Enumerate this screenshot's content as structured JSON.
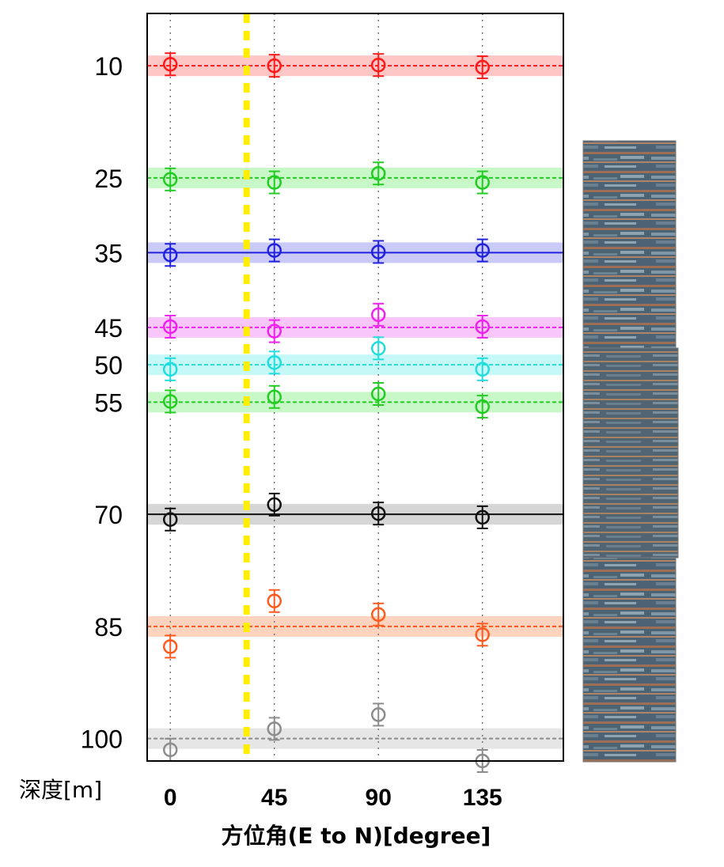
{
  "chart_data": {
    "type": "scatter",
    "title": "",
    "xlabel": "方位角(E to N)[degree]",
    "ylabel": "深度[m]",
    "x_ticks": [
      "0",
      "45",
      "90",
      "135"
    ],
    "y_ticks": [
      "10",
      "25",
      "35",
      "45",
      "50",
      "55",
      "70",
      "85",
      "100"
    ],
    "xlim": [
      -10,
      170
    ],
    "ylim": [
      103,
      3
    ],
    "y_inverted": true,
    "grid": "vertical dotted lines at 0, 45, 90, 135",
    "marker_line_x": 33,
    "series": [
      {
        "depth": 10,
        "color": "#ff1a1a",
        "band_color": "#ffb3b3",
        "solid": false,
        "points": [
          {
            "x": 0,
            "y": 9.8
          },
          {
            "x": 45,
            "y": 10.0
          },
          {
            "x": 90,
            "y": 9.9
          },
          {
            "x": 135,
            "y": 10.2
          }
        ]
      },
      {
        "depth": 25,
        "color": "#22cc22",
        "band_color": "#b6f5b6",
        "solid": false,
        "points": [
          {
            "x": 0,
            "y": 25.2
          },
          {
            "x": 45,
            "y": 25.6
          },
          {
            "x": 90,
            "y": 24.4
          },
          {
            "x": 135,
            "y": 25.6
          }
        ]
      },
      {
        "depth": 35,
        "color": "#2222dd",
        "band_color": "#b8b8f5",
        "solid": true,
        "points": [
          {
            "x": 0,
            "y": 35.3
          },
          {
            "x": 45,
            "y": 34.7
          },
          {
            "x": 90,
            "y": 34.9
          },
          {
            "x": 135,
            "y": 34.7
          }
        ]
      },
      {
        "depth": 45,
        "color": "#ee22ee",
        "band_color": "#f6b3f6",
        "solid": false,
        "points": [
          {
            "x": 0,
            "y": 44.9
          },
          {
            "x": 45,
            "y": 45.5
          },
          {
            "x": 90,
            "y": 43.3
          },
          {
            "x": 135,
            "y": 44.9
          }
        ]
      },
      {
        "depth": 50,
        "color": "#22dddd",
        "band_color": "#b3f5f5",
        "solid": false,
        "points": [
          {
            "x": 0,
            "y": 50.6
          },
          {
            "x": 45,
            "y": 49.7
          },
          {
            "x": 90,
            "y": 47.8
          },
          {
            "x": 135,
            "y": 50.6
          }
        ]
      },
      {
        "depth": 55,
        "color": "#22cc22",
        "band_color": "#b6f5b6",
        "solid": false,
        "points": [
          {
            "x": 0,
            "y": 54.9
          },
          {
            "x": 45,
            "y": 54.3
          },
          {
            "x": 90,
            "y": 53.9
          },
          {
            "x": 135,
            "y": 55.6
          }
        ]
      },
      {
        "depth": 70,
        "color": "#111111",
        "band_color": "#c8c8c8",
        "solid": true,
        "points": [
          {
            "x": 0,
            "y": 70.7
          },
          {
            "x": 45,
            "y": 68.7
          },
          {
            "x": 90,
            "y": 69.9
          },
          {
            "x": 135,
            "y": 70.4
          }
        ]
      },
      {
        "depth": 85,
        "color": "#ff5a1f",
        "band_color": "#ffc4a8",
        "solid": false,
        "points": [
          {
            "x": 0,
            "y": 87.7
          },
          {
            "x": 45,
            "y": 81.6
          },
          {
            "x": 90,
            "y": 83.4
          },
          {
            "x": 135,
            "y": 86.1
          }
        ]
      },
      {
        "depth": 100,
        "color": "#8c8c8c",
        "band_color": "#dddddd",
        "solid": false,
        "points": [
          {
            "x": 0,
            "y": 101.5
          },
          {
            "x": 45,
            "y": 98.7
          },
          {
            "x": 90,
            "y": 96.8
          },
          {
            "x": 135,
            "y": 103.0
          }
        ]
      }
    ]
  }
}
